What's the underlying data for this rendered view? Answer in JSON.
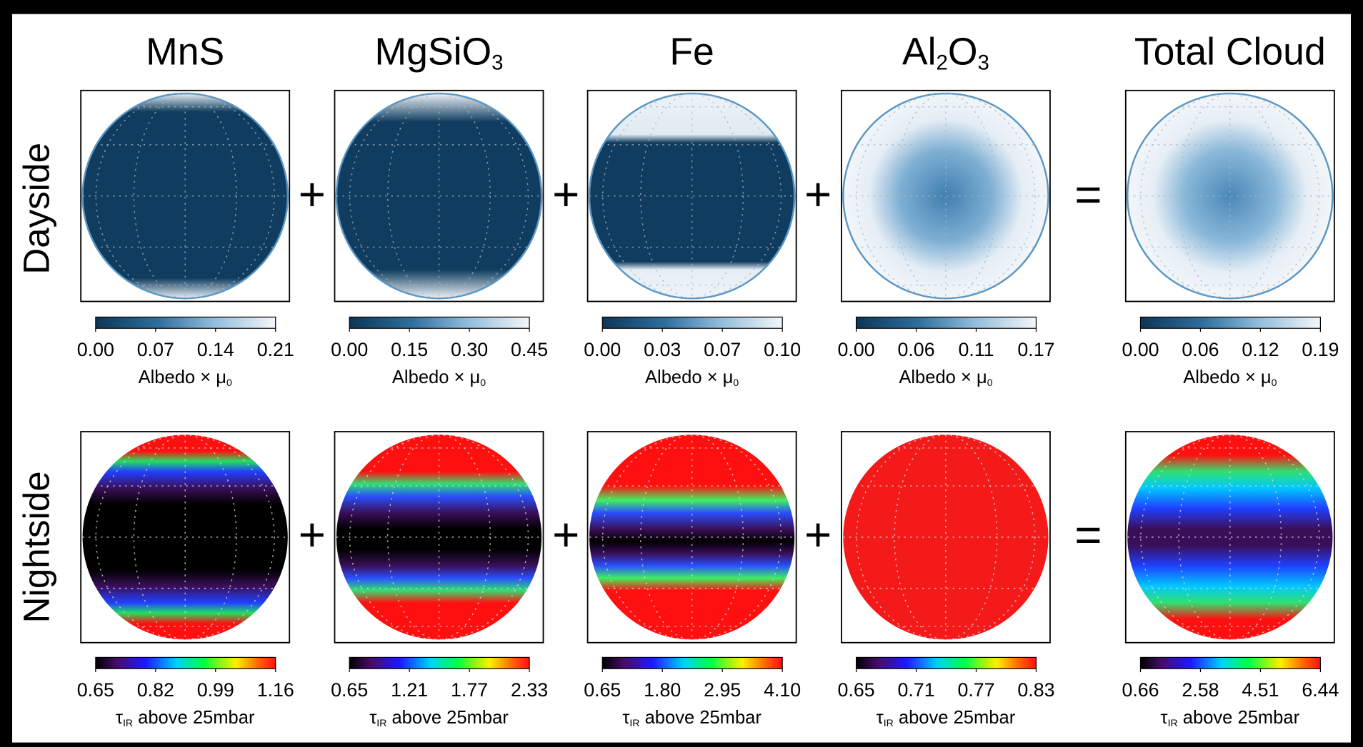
{
  "rows": [
    "Dayside",
    "Nightside"
  ],
  "operators": [
    "+",
    "+",
    "+",
    "="
  ],
  "dayside_label": [
    "Albedo × μ",
    "0"
  ],
  "nightside_label": [
    "τ",
    "IR",
    " above 25mbar"
  ],
  "columns": [
    {
      "title": [
        "MnS"
      ],
      "dayside_ticks": [
        "0.00",
        "0.07",
        "0.14",
        "0.21"
      ],
      "nightside_ticks": [
        "0.65",
        "0.82",
        "0.99",
        "1.16"
      ]
    },
    {
      "title": [
        "MgSiO",
        "3"
      ],
      "dayside_ticks": [
        "0.00",
        "0.15",
        "0.30",
        "0.45"
      ],
      "nightside_ticks": [
        "0.65",
        "1.21",
        "1.77",
        "2.33"
      ]
    },
    {
      "title": [
        "Fe"
      ],
      "dayside_ticks": [
        "0.00",
        "0.03",
        "0.07",
        "0.10"
      ],
      "nightside_ticks": [
        "0.65",
        "1.80",
        "2.95",
        "4.10"
      ]
    },
    {
      "title": [
        "Al",
        "2",
        "O",
        "3"
      ],
      "dayside_ticks": [
        "0.00",
        "0.06",
        "0.11",
        "0.17"
      ],
      "nightside_ticks": [
        "0.65",
        "0.71",
        "0.77",
        "0.83"
      ]
    },
    {
      "title": [
        "Total Cloud"
      ],
      "dayside_ticks": [
        "0.00",
        "0.06",
        "0.12",
        "0.19"
      ],
      "nightside_ticks": [
        "0.66",
        "2.58",
        "4.51",
        "6.44"
      ]
    }
  ]
}
